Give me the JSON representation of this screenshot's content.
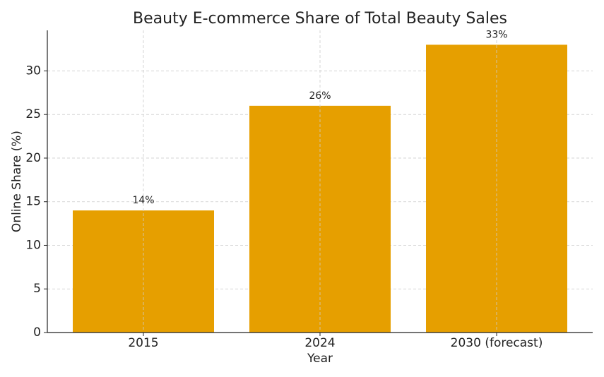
{
  "chart_data": {
    "type": "bar",
    "title": "Beauty E-commerce Share of Total Beauty Sales",
    "x_label": "Year",
    "y_label": "Online Share (%)",
    "categories": [
      "2015",
      "2024",
      "2030 (forecast)"
    ],
    "values": [
      14,
      26,
      33
    ],
    "value_labels": [
      "14%",
      "26%",
      "33%"
    ],
    "color": "#e69f00",
    "ylim": [
      0,
      34.65
    ],
    "yticks": [
      0,
      5,
      10,
      15,
      20,
      25,
      30
    ],
    "grid": true
  }
}
